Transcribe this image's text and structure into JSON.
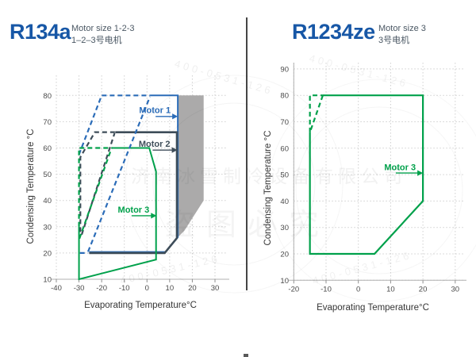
{
  "left_panel": {
    "title": "R134a",
    "subtitle_en": "Motor size 1-2-3",
    "subtitle_cn": "1–2–3号电机"
  },
  "right_panel": {
    "title": "R1234ze",
    "subtitle_en": "Motor size 3",
    "subtitle_cn": "3号电机"
  },
  "colors": {
    "title_blue": "#1757A6",
    "motor1_blue": "#2B6CB8",
    "motor2_dark": "#3E4D59",
    "motor3_green": "#00A14B",
    "gray_fill": "#ABAAAA",
    "grid": "#cfcfcf",
    "axis_line": "#b0b0b0",
    "tick_text": "#4a4a4a",
    "axis_label_text": "#353535",
    "subtitle_text": "#4A5763"
  },
  "watermark": {
    "company": "济南冰雪制冷设备有限公司",
    "notice": "盗图必究",
    "phone": "400-0531-126"
  },
  "chart_data": [
    {
      "type": "line",
      "title": "R134a operating envelope",
      "xlabel": "Evaporating Temperature°C",
      "ylabel": "Condensing Temperature °C",
      "xlim": [
        -45,
        36
      ],
      "ylim": [
        8,
        88
      ],
      "xticks": [
        -40,
        -30,
        -20,
        -10,
        0,
        10,
        20,
        30
      ],
      "yticks": [
        10,
        20,
        30,
        40,
        50,
        60,
        70,
        80
      ],
      "grid": true,
      "legend_position": "none",
      "gray_region": [
        [
          13.6,
          80
        ],
        [
          25,
          80
        ],
        [
          25,
          40
        ],
        [
          16.5,
          28.5
        ],
        [
          13.6,
          26
        ]
      ],
      "series": [
        {
          "name": "Motor 1 envelope (solid)",
          "color_key": "motor1_blue",
          "dash": false,
          "width": 2,
          "points": [
            [
              1.5,
              80
            ],
            [
              13.6,
              80
            ],
            [
              13.6,
              26
            ],
            [
              8.2,
              20.4
            ],
            [
              -25.5,
              20.4
            ]
          ]
        },
        {
          "name": "Motor 2 envelope (solid)",
          "color_key": "motor2_dark",
          "dash": false,
          "width": 2.6,
          "points": [
            [
              -14,
              66
            ],
            [
              13.2,
              66
            ],
            [
              13.2,
              25.7
            ],
            [
              7.8,
              20
            ],
            [
              -25.5,
              20
            ]
          ]
        },
        {
          "name": "Motor 3 envelope (solid)",
          "color_key": "motor3_green",
          "dash": false,
          "width": 2,
          "points": [
            [
              -15,
              60
            ],
            [
              1,
              60
            ],
            [
              4,
              51
            ],
            [
              4,
              17.5
            ],
            [
              -30,
              10
            ],
            [
              -30,
              30
            ]
          ]
        },
        {
          "name": "Motor 1 extended (dashed top)",
          "color_key": "motor1_blue",
          "dash": true,
          "width": 2.2,
          "points": [
            [
              -30,
              57.5
            ],
            [
              -20,
              80
            ],
            [
              1.5,
              80
            ]
          ]
        },
        {
          "name": "Motor 1 extended (dashed diagonal)",
          "color_key": "motor1_blue",
          "dash": true,
          "width": 2.2,
          "points": [
            [
              -26,
              20.5
            ],
            [
              1.3,
              79.5
            ]
          ]
        },
        {
          "name": "Motor 1 extended (dashed bottom)",
          "color_key": "motor1_blue",
          "dash": true,
          "width": 2.2,
          "points": [
            [
              -29.6,
              20
            ],
            [
              -26,
              20
            ]
          ]
        },
        {
          "name": "Motor 2 extended (dashed top)",
          "color_key": "motor2_dark",
          "dash": true,
          "width": 2.2,
          "points": [
            [
              -29.4,
              28
            ],
            [
              -29.4,
              56.5
            ],
            [
              -23,
              66
            ],
            [
              -14,
              66
            ]
          ]
        },
        {
          "name": "Motor 2 extended (dashed diagonal)",
          "color_key": "motor2_dark",
          "dash": true,
          "width": 2.2,
          "points": [
            [
              -28.8,
              27
            ],
            [
              -14.3,
              65.6
            ]
          ]
        },
        {
          "name": "Motor 3 extended (dashed top)",
          "color_key": "motor3_green",
          "dash": true,
          "width": 2.2,
          "points": [
            [
              -30,
              30
            ],
            [
              -30,
              60
            ],
            [
              -15,
              60
            ]
          ]
        },
        {
          "name": "Motor 3 extended (dashed diagonal)",
          "color_key": "motor3_green",
          "dash": true,
          "width": 2.2,
          "points": [
            [
              -29.8,
              25.5
            ],
            [
              -15.8,
              59.5
            ]
          ]
        }
      ],
      "labels": [
        {
          "text": "Motor 1",
          "color_key": "motor1_blue",
          "ty": 74.3,
          "ux0": 3.8,
          "ux1": 13.6,
          "uy": 72
        },
        {
          "text": "Motor 2",
          "color_key": "motor2_dark",
          "ty": 61.5,
          "ux0": 2.5,
          "ux1": 13.4,
          "uy": 59.2
        },
        {
          "text": "Motor 3",
          "color_key": "motor3_green",
          "ty": 36.4,
          "ux0": -6.8,
          "ux1": 4.2,
          "uy": 34.2
        }
      ]
    },
    {
      "type": "line",
      "title": "R1234ze operating envelope",
      "xlabel": "Evaporating Temperature°C",
      "ylabel": "Condensing Temperature °C",
      "xlim": [
        -24,
        33
      ],
      "ylim": [
        8,
        95
      ],
      "xticks": [
        -20,
        -10,
        0,
        10,
        20,
        30
      ],
      "yticks": [
        10,
        20,
        30,
        40,
        50,
        60,
        70,
        80,
        90
      ],
      "grid": true,
      "legend_position": "none",
      "gray_region": null,
      "series": [
        {
          "name": "Motor 3 envelope (solid)",
          "color_key": "motor3_green",
          "dash": false,
          "width": 2.2,
          "points": [
            [
              -11,
              80
            ],
            [
              20,
              80
            ],
            [
              20,
              40
            ],
            [
              5,
              20
            ],
            [
              -15,
              20
            ],
            [
              -15,
              66
            ]
          ]
        },
        {
          "name": "Motor 3 extended (dashed corner)",
          "color_key": "motor3_green",
          "dash": true,
          "width": 2.2,
          "points": [
            [
              -15,
              66
            ],
            [
              -15,
              80
            ],
            [
              -11,
              80
            ]
          ]
        },
        {
          "name": "Motor 3 extended (dashed diagonal)",
          "color_key": "motor3_green",
          "dash": true,
          "width": 2.2,
          "points": [
            [
              -11,
              80
            ],
            [
              -15,
              66
            ]
          ]
        }
      ],
      "labels": [
        {
          "text": "Motor 3",
          "color_key": "motor3_green",
          "ty": 52.8,
          "ux0": 11.6,
          "ux1": 20,
          "uy": 50.6
        }
      ]
    }
  ]
}
